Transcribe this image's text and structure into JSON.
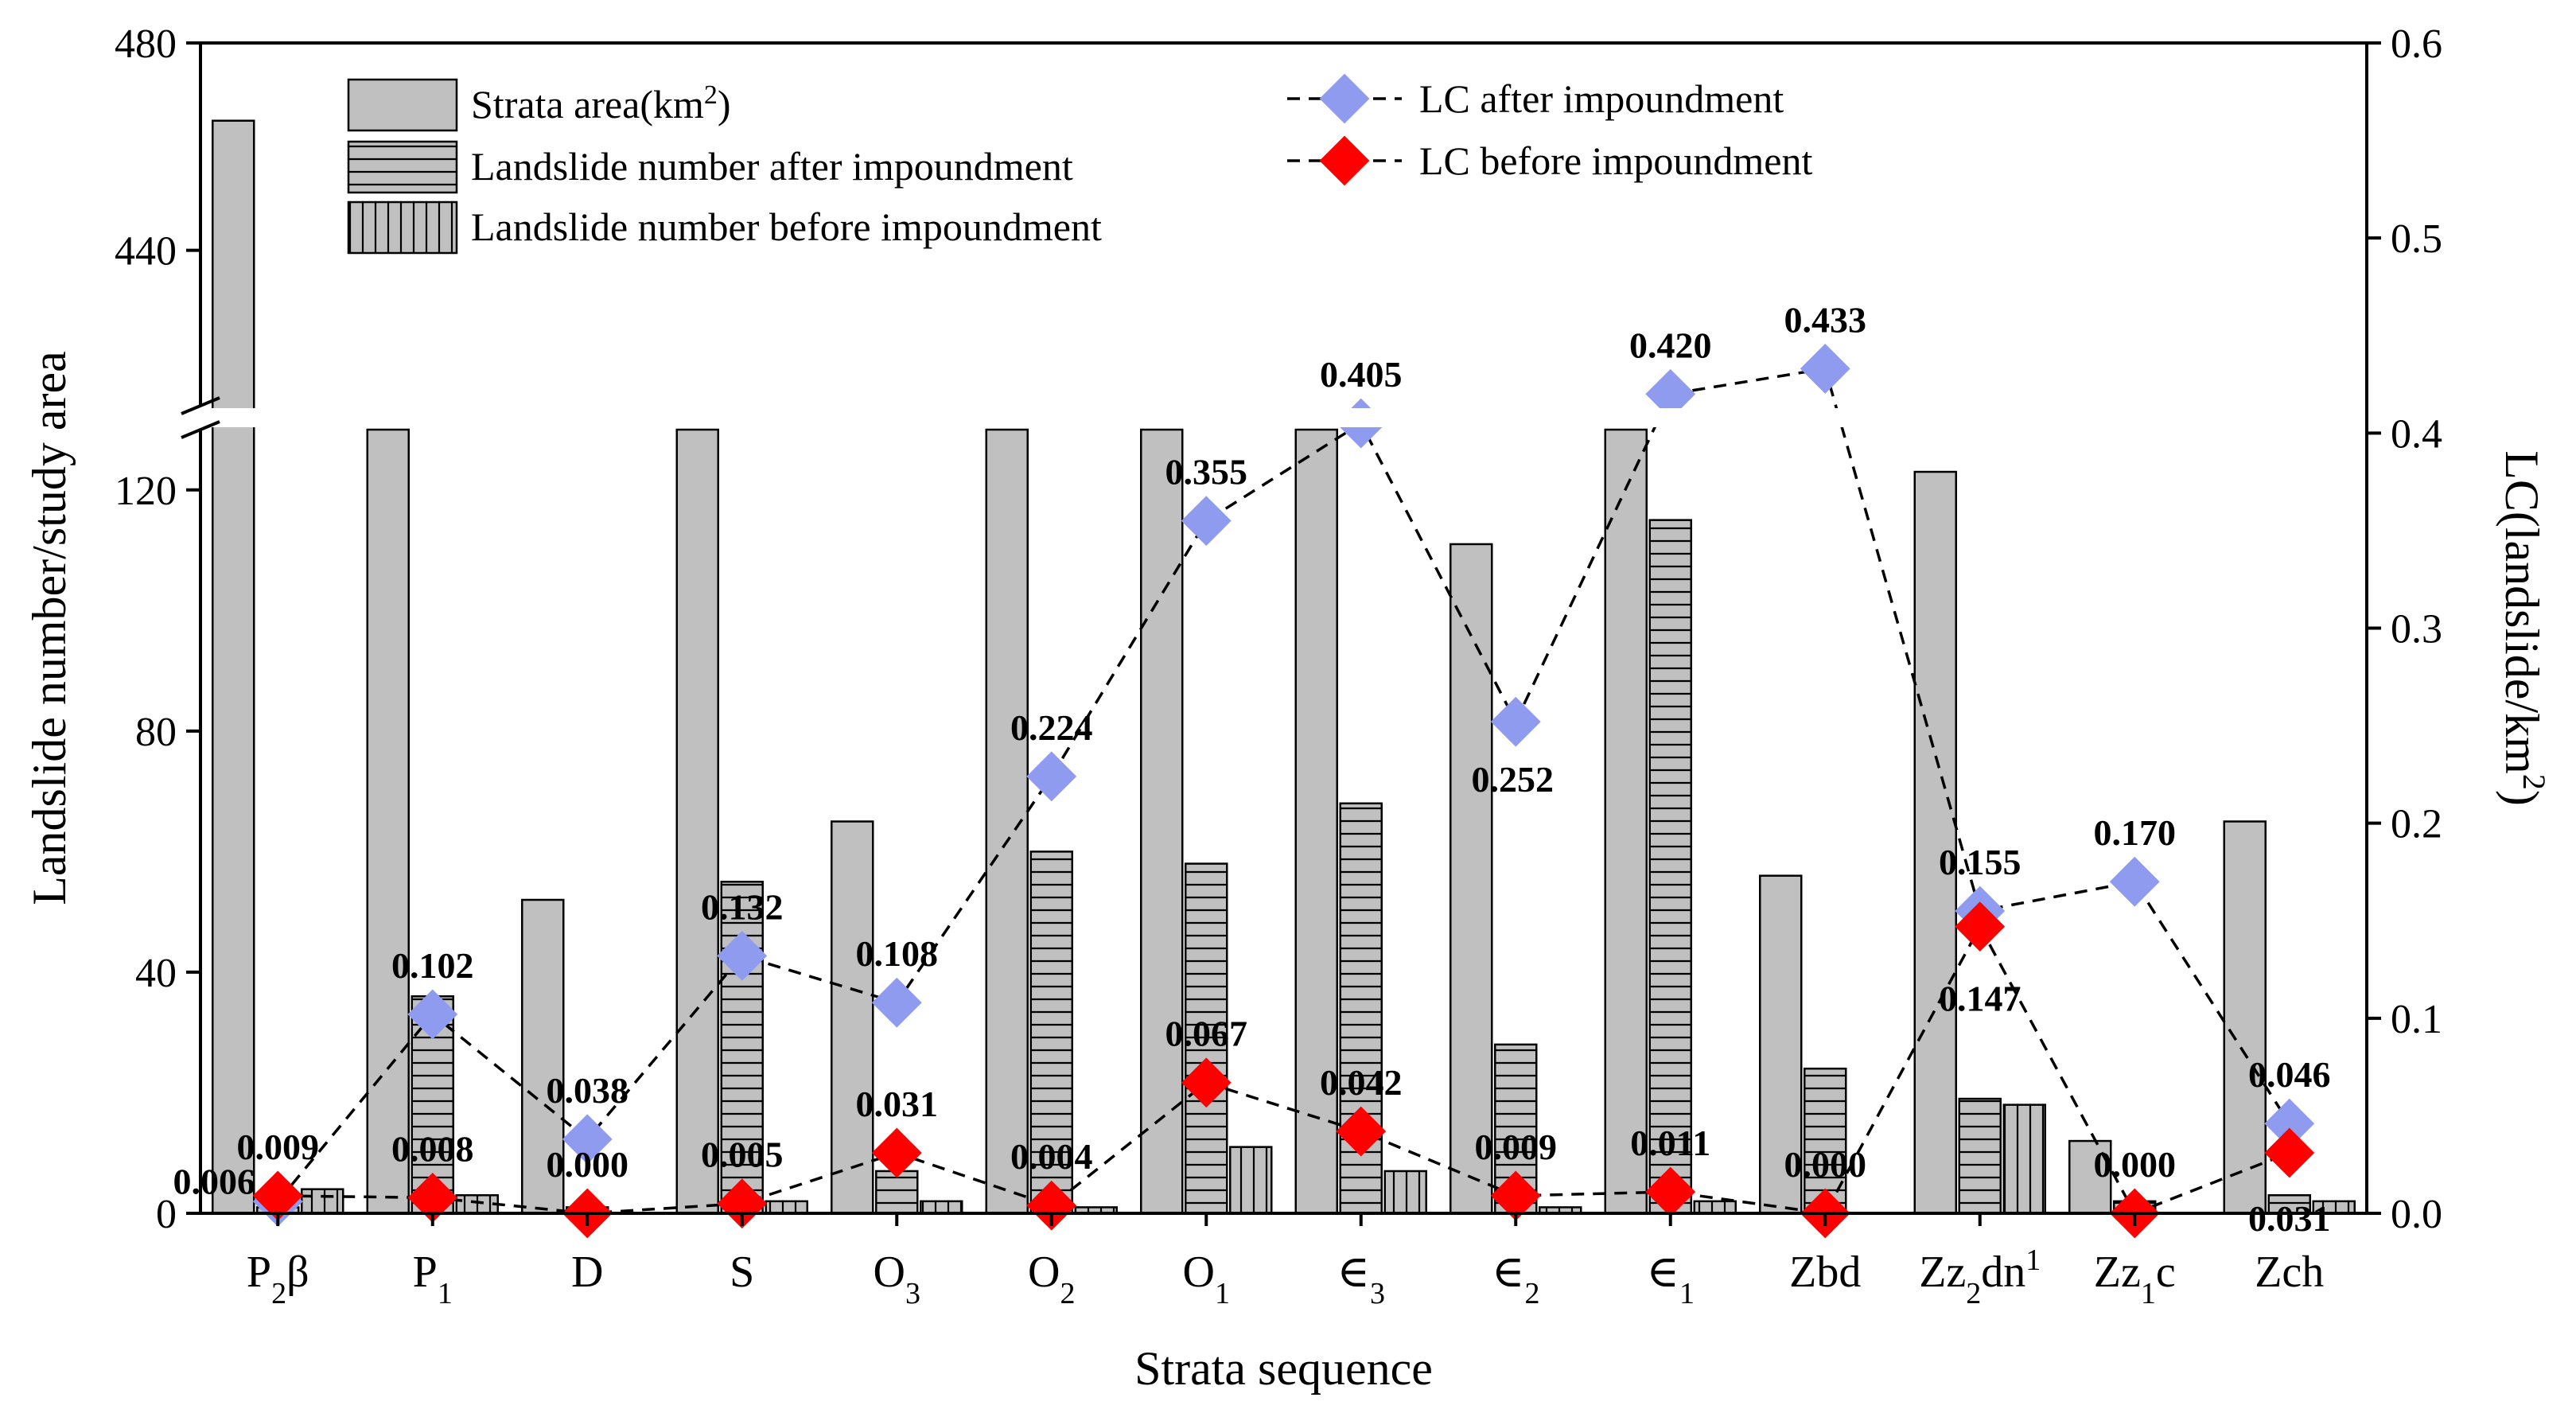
{
  "chart_data": {
    "type": "bar",
    "xlabel": "Strata sequence",
    "ylabel": "Landslide number/study area",
    "y2label": "LC(landslide/km²)",
    "y2label_main": "LC(landslide/km",
    "y2label_sup": "2",
    "y2label_close": ")",
    "ylim_lower": [
      0,
      130
    ],
    "ylim_upper": [
      410,
      480
    ],
    "y_axis_break": true,
    "yticks": [
      "0",
      "40",
      "80",
      "120",
      "440",
      "480"
    ],
    "y2lim": [
      0,
      0.6
    ],
    "y2ticks": [
      "0.0",
      "0.1",
      "0.2",
      "0.3",
      "0.4",
      "0.5",
      "0.6"
    ],
    "categories": [
      {
        "base": "P",
        "sub": "2",
        "tail": "β"
      },
      {
        "base": "P",
        "sub": "1",
        "tail": ""
      },
      {
        "base": "D",
        "sub": "",
        "tail": ""
      },
      {
        "base": "S",
        "sub": "",
        "tail": ""
      },
      {
        "base": "O",
        "sub": "3",
        "tail": ""
      },
      {
        "base": "O",
        "sub": "2",
        "tail": ""
      },
      {
        "base": "O",
        "sub": "1",
        "tail": ""
      },
      {
        "base": "∈",
        "sub": "3",
        "tail": ""
      },
      {
        "base": "∈",
        "sub": "2",
        "tail": ""
      },
      {
        "base": "∈",
        "sub": "1",
        "tail": ""
      },
      {
        "base": "Zbd",
        "sub": "",
        "tail": ""
      },
      {
        "base": "Zz",
        "sub": "2",
        "tail": "dn",
        "sup": "1"
      },
      {
        "base": "Zz",
        "sub": "1",
        "tail": "c"
      },
      {
        "base": "Zch",
        "sub": "",
        "tail": ""
      }
    ],
    "series": [
      {
        "name": "Strata area(km²)",
        "legend_main": "Strata area(km",
        "legend_sup": "2",
        "legend_close": ")",
        "pattern": "solid",
        "values": [
          465,
          132,
          52,
          132,
          65,
          132,
          132,
          132,
          111,
          132,
          56,
          123,
          12,
          65
        ]
      },
      {
        "name": "Landslide number after impoundment",
        "pattern": "horizontal",
        "values": [
          1,
          36,
          1,
          55,
          7,
          60,
          58,
          68,
          28,
          115,
          24,
          19,
          2,
          3
        ]
      },
      {
        "name": "Landslide number before impoundment",
        "pattern": "vertical",
        "values": [
          4,
          3,
          0,
          2,
          2,
          1,
          11,
          7,
          1,
          2,
          0,
          18,
          0,
          2
        ]
      }
    ],
    "lines": [
      {
        "name": "LC after impoundment",
        "marker": "diamond",
        "color": "#8f9bef",
        "values": [
          0.006,
          0.102,
          0.038,
          0.132,
          0.108,
          0.224,
          0.355,
          0.405,
          0.252,
          0.42,
          0.433,
          0.155,
          0.17,
          0.046
        ],
        "labels": [
          "0.006",
          "0.102",
          "0.038",
          "0.132",
          "0.108",
          "0.224",
          "0.355",
          "0.405",
          "0.252",
          "0.420",
          "0.433",
          "0.155",
          "0.170",
          "0.046"
        ]
      },
      {
        "name": "LC before impoundment",
        "marker": "diamond",
        "color": "#ff0000",
        "values": [
          0.009,
          0.008,
          0.0,
          0.005,
          0.031,
          0.004,
          0.067,
          0.042,
          0.009,
          0.011,
          0.0,
          0.147,
          0.0,
          0.031
        ],
        "labels": [
          "0.009",
          "0.008",
          "0.000",
          "0.005",
          "0.031",
          "0.004",
          "0.067",
          "0.042",
          "0.009",
          "0.011",
          "0.000",
          "0.147",
          "0.000",
          "0.031"
        ]
      }
    ],
    "colors": {
      "bar_fill": "#c0c0c0",
      "bar_stroke": "#000000",
      "grid": "none"
    },
    "legend_position": "top-left and top-center"
  }
}
